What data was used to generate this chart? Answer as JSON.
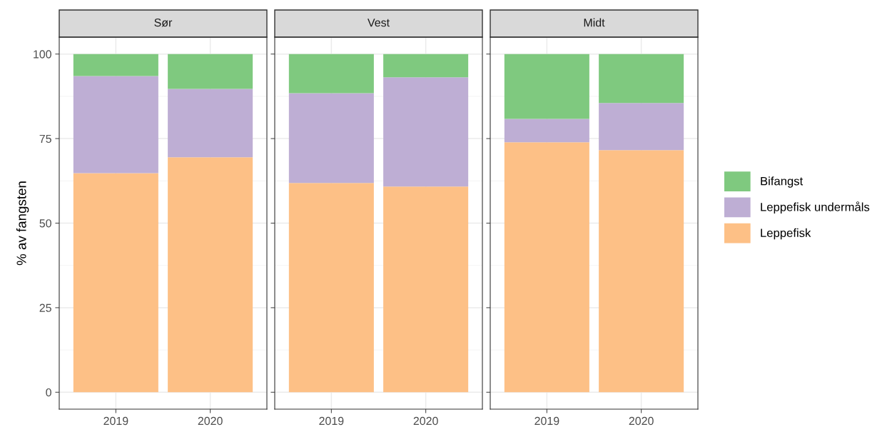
{
  "chart_data": [
    {
      "type": "bar",
      "title": "Sør",
      "ylabel": "% av fangsten",
      "categories": [
        "2019",
        "2020"
      ],
      "stacked": true,
      "ylim": [
        -5,
        105
      ],
      "yticks": [
        0,
        25,
        50,
        75,
        100
      ],
      "grid": true,
      "legend": false,
      "series": [
        {
          "color": "#fdc086",
          "values": [
            64.8,
            69.5
          ]
        },
        {
          "color": "#beaed4",
          "values": [
            28.7,
            20.2
          ]
        },
        {
          "color": "#7fc97f",
          "values": [
            6.5,
            10.3
          ]
        }
      ]
    },
    {
      "type": "bar",
      "title": "Vest",
      "categories": [
        "2019",
        "2020"
      ],
      "stacked": true,
      "ylim": [
        -5,
        105
      ],
      "yticks": [
        0,
        25,
        50,
        75,
        100
      ],
      "grid": true,
      "legend": false,
      "tick_labels": "x",
      "series": [
        {
          "color": "#fdc086",
          "values": [
            61.9,
            60.8
          ]
        },
        {
          "color": "#beaed4",
          "values": [
            26.5,
            32.3
          ]
        },
        {
          "color": "#7fc97f",
          "values": [
            11.6,
            6.9
          ]
        }
      ]
    },
    {
      "type": "bar",
      "title": "Midt",
      "categories": [
        "2019",
        "2020"
      ],
      "stacked": true,
      "ylim": [
        -5,
        105
      ],
      "yticks": [
        0,
        25,
        50,
        75,
        100
      ],
      "grid": true,
      "legend": "right",
      "tick_labels": "x",
      "series": [
        {
          "name": "Leppefisk",
          "color": "#fdc086",
          "values": [
            73.9,
            71.6
          ]
        },
        {
          "name": "Leppefisk undermåls",
          "color": "#beaed4",
          "values": [
            6.9,
            13.9
          ]
        },
        {
          "name": "Bifangst",
          "color": "#7fc97f",
          "values": [
            19.2,
            14.5
          ]
        }
      ]
    }
  ]
}
